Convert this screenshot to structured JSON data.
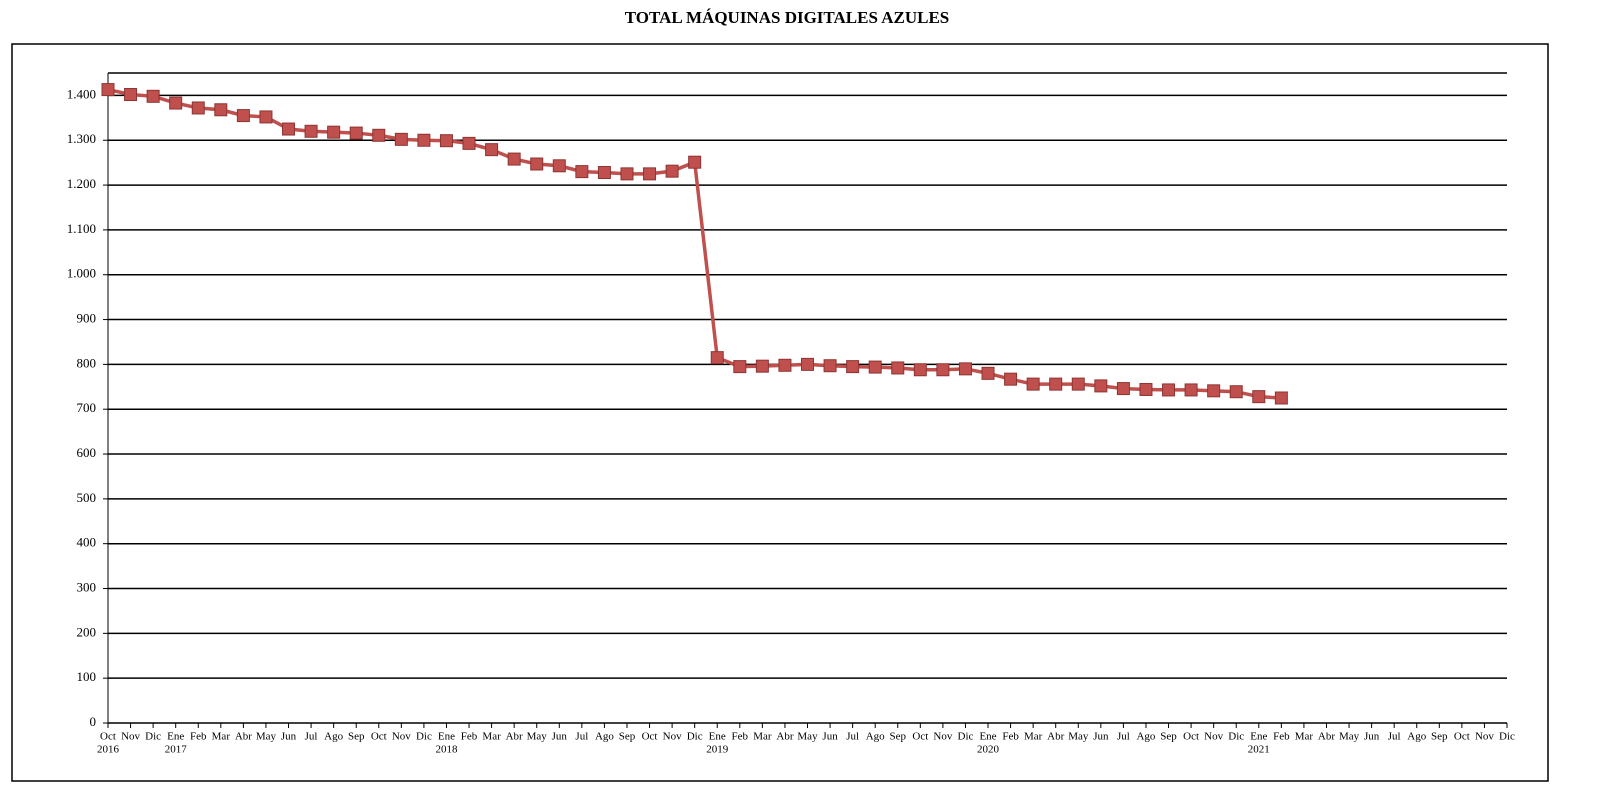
{
  "chart_data": {
    "type": "line",
    "title": "TOTAL MÁQUINAS DIGITALES AZULES",
    "categories": [
      "Oct",
      "Nov",
      "Dic",
      "Ene",
      "Feb",
      "Mar",
      "Abr",
      "May",
      "Jun",
      "Jul",
      "Ago",
      "Sep",
      "Oct",
      "Nov",
      "Dic",
      "Ene",
      "Feb",
      "Mar",
      "Abr",
      "May",
      "Jun",
      "Jul",
      "Ago",
      "Sep",
      "Oct",
      "Nov",
      "Dic",
      "Ene",
      "Feb",
      "Mar",
      "Abr",
      "May",
      "Jun",
      "Jul",
      "Ago",
      "Sep",
      "Oct",
      "Nov",
      "Dic",
      "Ene",
      "Feb",
      "Mar",
      "Abr",
      "May",
      "Jun",
      "Jul",
      "Ago",
      "Sep",
      "Oct",
      "Nov",
      "Dic",
      "Ene",
      "Feb",
      "Mar",
      "Abr",
      "May",
      "Jun",
      "Jul",
      "Ago",
      "Sep",
      "Oct",
      "Nov",
      "Dic"
    ],
    "year_labels": [
      "2016",
      null,
      null,
      "2017",
      null,
      null,
      null,
      null,
      null,
      null,
      null,
      null,
      null,
      null,
      null,
      "2018",
      null,
      null,
      null,
      null,
      null,
      null,
      null,
      null,
      null,
      null,
      null,
      "2019",
      null,
      null,
      null,
      null,
      null,
      null,
      null,
      null,
      null,
      null,
      null,
      "2020",
      null,
      null,
      null,
      null,
      null,
      null,
      null,
      null,
      null,
      null,
      null,
      "2021",
      null,
      null,
      null,
      null,
      null,
      null,
      null,
      null,
      null,
      null,
      null
    ],
    "series": [
      {
        "color": "#c0504d",
        "values": [
          1413,
          1402,
          1398,
          1383,
          1372,
          1368,
          1355,
          1352,
          1325,
          1320,
          1318,
          1316,
          1311,
          1302,
          1300,
          1299,
          1293,
          1279,
          1258,
          1247,
          1243,
          1230,
          1228,
          1225,
          1225,
          1231,
          1251,
          815,
          795,
          796,
          798,
          800,
          797,
          795,
          794,
          792,
          788,
          788,
          790,
          780,
          767,
          756,
          756,
          756,
          752,
          746,
          744,
          743,
          743,
          741,
          739,
          728,
          725,
          null,
          null,
          null,
          null,
          null,
          null,
          null,
          null,
          null,
          null
        ]
      }
    ],
    "ylim": [
      0,
      1450
    ],
    "yticks": [
      0,
      100,
      200,
      300,
      400,
      500,
      600,
      700,
      800,
      900,
      {
        "value": 1000,
        "label": "1.000"
      },
      {
        "value": 1100,
        "label": "1.100"
      },
      {
        "value": 1200,
        "label": "1.200"
      },
      {
        "value": 1300,
        "label": "1.300"
      },
      {
        "value": 1400,
        "label": "1.400"
      }
    ],
    "grid": true
  }
}
